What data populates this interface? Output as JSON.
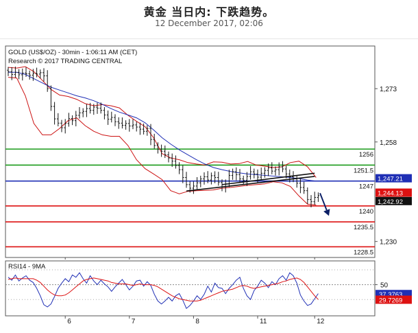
{
  "page": {
    "title": "黄金 当日内: 下跌趋势。",
    "date": "12 December 2017, 02:06"
  },
  "chart_data": [
    {
      "type": "candlestick",
      "header": "GOLD (US$/OZ) - 30min - 1:06:11 AM (CET)",
      "credit": "Research © 2017 TRADING CENTRAL",
      "x_ticks": [
        "6",
        "7",
        "8",
        "11",
        "12"
      ],
      "y_ticks": [
        1273,
        1258,
        1230
      ],
      "y_tick_labels": [
        "1,273",
        "1,258",
        "1,230"
      ],
      "ylim": [
        1225.5,
        1285
      ],
      "levels": [
        {
          "label": "1256",
          "value": 1256,
          "color": "#1a9a1a"
        },
        {
          "label": "1251.5",
          "value": 1251.5,
          "color": "#1a9a1a"
        },
        {
          "label": "1247",
          "value": 1247,
          "color": "#1f2fb5"
        },
        {
          "label": "1240",
          "value": 1240,
          "color": "#dd1111"
        },
        {
          "label": "1235.5",
          "value": 1235.5,
          "color": "#dd1111"
        },
        {
          "label": "1228.5",
          "value": 1228.5,
          "color": "#dd1111"
        }
      ],
      "price_tags": [
        {
          "label": "1,247.21",
          "value": 1247.21,
          "bg": "#1f2fb5",
          "fg": "#ffffff"
        },
        {
          "label": "1,244.13",
          "value": 1244.13,
          "bg": "#dd1111",
          "fg": "#ffffff"
        },
        {
          "label": "1,242.92",
          "value": 1242.92,
          "bg": "#111111",
          "fg": "#ffffff"
        }
      ],
      "closes": [
        1277.8,
        1277.0,
        1277.6,
        1276.9,
        1277.4,
        1277.2,
        1276.8,
        1277.3,
        1277.1,
        1277.5,
        1276.6,
        1273.0,
        1268.0,
        1264.5,
        1263.3,
        1262.0,
        1263.2,
        1264.6,
        1264.0,
        1265.5,
        1266.2,
        1266.6,
        1267.4,
        1266.9,
        1267.8,
        1267.5,
        1266.9,
        1265.6,
        1264.4,
        1264.9,
        1263.7,
        1263.3,
        1262.7,
        1263.2,
        1262.5,
        1262.8,
        1262.2,
        1261.6,
        1261.0,
        1261.8,
        1258.7,
        1257.0,
        1256.0,
        1255.4,
        1254.4,
        1253.5,
        1252.6,
        1251.4,
        1250.2,
        1248.0,
        1246.0,
        1245.0,
        1245.6,
        1246.5,
        1247.6,
        1248.2,
        1247.3,
        1248.5,
        1248.0,
        1246.6,
        1245.4,
        1246.2,
        1248.6,
        1249.6,
        1248.8,
        1247.6,
        1247.2,
        1248.3,
        1249.6,
        1249.0,
        1248.1,
        1249.2,
        1250.0,
        1250.7,
        1249.8,
        1250.2,
        1251.0,
        1250.4,
        1249.0,
        1248.2,
        1247.6,
        1246.4,
        1245.2,
        1244.3,
        1241.8,
        1241.2,
        1242.4,
        1242.9
      ],
      "bollinger_upper": [
        1279.0,
        1278.8,
        1279.2,
        1277.8,
        1275.3,
        1272.8,
        1271.2,
        1270.8,
        1270.0,
        1268.8,
        1268.2,
        1268.5,
        1268.2,
        1267.6,
        1265.5,
        1263.8,
        1262.3,
        1259.2,
        1254.7,
        1253.5,
        1253.0,
        1252.2,
        1251.8,
        1251.5,
        1252.4,
        1252.3,
        1251.8,
        1251.9,
        1252.5,
        1251.5,
        1251.2,
        1250.8,
        1251.0,
        1252.2,
        1252.6,
        1251.0,
        1248.0
      ],
      "bollinger_lower": [
        1276.2,
        1276.0,
        1271.0,
        1263.2,
        1260.0,
        1260.0,
        1261.8,
        1264.0,
        1264.8,
        1262.6,
        1261.0,
        1260.0,
        1259.6,
        1259.6,
        1257.0,
        1253.0,
        1250.5,
        1249.0,
        1247.4,
        1244.3,
        1243.4,
        1244.1,
        1244.3,
        1244.4,
        1244.5,
        1245.0,
        1245.2,
        1245.5,
        1245.8,
        1246.0,
        1246.2,
        1246.8,
        1246.5,
        1245.5,
        1242.8,
        1240.5,
        1240.3
      ],
      "moving_average": [
        1277.6,
        1277.6,
        1277.0,
        1275.8,
        1274.6,
        1273.4,
        1272.6,
        1271.8,
        1271.0,
        1270.4,
        1269.6,
        1268.6,
        1267.4,
        1266.4,
        1265.6,
        1264.8,
        1263.4,
        1261.4,
        1259.2,
        1257.4,
        1255.8,
        1254.4,
        1253.0,
        1251.8,
        1250.8,
        1250.2,
        1249.7,
        1249.3,
        1249.0,
        1248.8,
        1248.6,
        1248.4,
        1248.2,
        1248.0,
        1247.7,
        1247.3,
        1247.0
      ],
      "trendlines": [
        {
          "from": {
            "bar": 50,
            "value": 1244.2
          },
          "to": {
            "bar": 86,
            "value": 1248.3
          }
        },
        {
          "from": {
            "bar": 60,
            "value": 1246.0
          },
          "to": {
            "bar": 86,
            "value": 1249.2
          }
        }
      ],
      "forecast_arrow": {
        "from": {
          "bar": 87.5,
          "value": 1243.6
        },
        "to": {
          "bar": 90,
          "value": 1237.2
        }
      }
    },
    {
      "type": "line",
      "title": "RSI14 - 9MA",
      "y_ticks": [
        50
      ],
      "ylim": [
        8,
        82
      ],
      "value_tags": [
        {
          "label": "37.3763",
          "value": 37.3763,
          "bg": "#1f2fb5",
          "fg": "#ffffff"
        },
        {
          "label": "29.7269",
          "value": 29.7269,
          "bg": "#dd1111",
          "fg": "#ffffff"
        }
      ],
      "series": [
        {
          "values": [
            60,
            56,
            63,
            55,
            59,
            62,
            56,
            53,
            45,
            35,
            23,
            20,
            24,
            34,
            45,
            52,
            58,
            54,
            63,
            60,
            66,
            58,
            52,
            62,
            55,
            50,
            56,
            51,
            47,
            41,
            47,
            52,
            57,
            50,
            43,
            48,
            55,
            56,
            48,
            54,
            49,
            37,
            28,
            24,
            28,
            33,
            28,
            35,
            38,
            29,
            18,
            22,
            28,
            35,
            30,
            37,
            48,
            40,
            52,
            46,
            45,
            38,
            45,
            50,
            56,
            60,
            45,
            35,
            30,
            42,
            48,
            56,
            52,
            46,
            54,
            50,
            58,
            62,
            56,
            66,
            62,
            52,
            36,
            28,
            22,
            24,
            31,
            38
          ]
        },
        {
          "values": [
            57,
            58,
            59,
            58,
            58,
            58,
            58,
            58,
            56,
            53,
            48,
            43,
            39,
            36,
            35,
            35,
            36,
            39,
            43,
            47,
            51,
            55,
            57,
            58,
            59,
            58,
            57,
            56,
            55,
            53,
            52,
            51,
            51,
            51,
            50,
            49,
            50,
            51,
            50,
            50,
            50,
            49,
            47,
            44,
            41,
            38,
            35,
            33,
            31,
            30,
            29,
            28,
            28,
            28,
            29,
            31,
            33,
            35,
            37,
            39,
            41,
            42,
            43,
            44,
            46,
            48,
            49,
            48,
            46,
            45,
            46,
            47,
            48,
            49,
            50,
            51,
            52,
            54,
            55,
            57,
            58,
            59,
            57,
            53,
            47,
            41,
            35,
            30
          ]
        }
      ]
    }
  ]
}
